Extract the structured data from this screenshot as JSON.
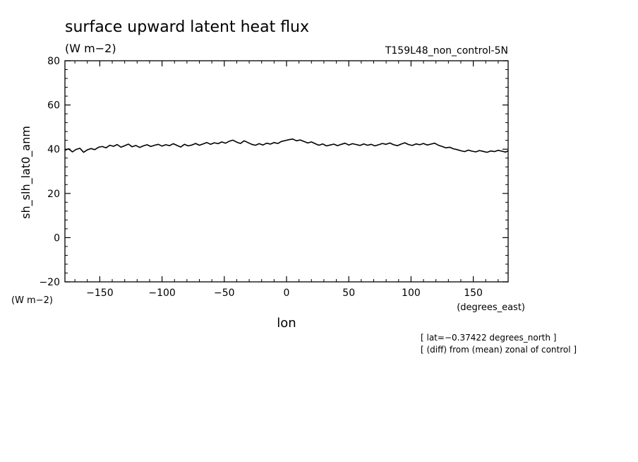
{
  "chart_data": {
    "type": "line",
    "title": "surface upward latent heat flux",
    "subtitle": "(W m−2)",
    "run_label": "T159L48_non_control-5N",
    "xlabel": "lon",
    "x_units": "(degrees_east)",
    "ylabel": "sh_slh_lat0_anm",
    "y_units": "(W m−2)",
    "xlim": [
      -178,
      178
    ],
    "ylim": [
      -20,
      80
    ],
    "x_ticks": [
      -150,
      -100,
      -50,
      0,
      50,
      100,
      150
    ],
    "x_tick_labels": [
      "−150",
      "−100",
      "−50",
      "0",
      "50",
      "100",
      "150"
    ],
    "y_ticks": [
      -20,
      0,
      20,
      40,
      60,
      80
    ],
    "y_tick_labels": [
      "−20",
      "0",
      "20",
      "40",
      "60",
      "80"
    ],
    "grid": false,
    "annotations": [
      "[ lat=−0.37422 degrees_north ]",
      "[ (diff) from (mean) zonal of control ]"
    ],
    "series": [
      {
        "color": "#000000",
        "x": [
          -178,
          -175,
          -172,
          -169,
          -166,
          -163,
          -160,
          -157,
          -154,
          -151,
          -148,
          -145,
          -142,
          -139,
          -136,
          -133,
          -130,
          -127,
          -124,
          -121,
          -118,
          -115,
          -112,
          -109,
          -106,
          -103,
          -100,
          -97,
          -94,
          -91,
          -88,
          -85,
          -82,
          -79,
          -76,
          -73,
          -70,
          -67,
          -64,
          -61,
          -58,
          -55,
          -52,
          -49,
          -46,
          -43,
          -40,
          -37,
          -34,
          -31,
          -28,
          -25,
          -22,
          -19,
          -16,
          -13,
          -10,
          -7,
          -4,
          -1,
          2,
          5,
          8,
          11,
          14,
          17,
          20,
          23,
          26,
          29,
          32,
          35,
          38,
          41,
          44,
          47,
          50,
          53,
          56,
          59,
          62,
          65,
          68,
          71,
          74,
          77,
          80,
          83,
          86,
          89,
          92,
          95,
          98,
          101,
          104,
          107,
          110,
          113,
          116,
          119,
          122,
          125,
          128,
          131,
          134,
          137,
          140,
          143,
          146,
          149,
          152,
          155,
          158,
          161,
          164,
          167,
          170,
          173,
          176,
          178
        ],
        "y": [
          39.5,
          40.2,
          38.8,
          39.9,
          40.4,
          38.6,
          39.7,
          40.3,
          39.8,
          40.9,
          41.2,
          40.6,
          41.8,
          41.3,
          42.1,
          40.9,
          41.6,
          42.3,
          41.1,
          41.7,
          40.8,
          41.5,
          42.0,
          41.2,
          41.8,
          42.2,
          41.4,
          42.0,
          41.6,
          42.5,
          41.7,
          41.0,
          42.2,
          41.5,
          41.9,
          42.6,
          41.8,
          42.4,
          43.0,
          42.2,
          42.9,
          42.5,
          43.3,
          42.7,
          43.6,
          44.1,
          43.2,
          42.6,
          43.8,
          43.0,
          42.2,
          41.8,
          42.5,
          41.9,
          42.7,
          42.3,
          43.0,
          42.6,
          43.5,
          43.9,
          44.3,
          44.6,
          43.8,
          44.2,
          43.5,
          42.8,
          43.3,
          42.5,
          41.8,
          42.4,
          41.5,
          41.9,
          42.3,
          41.6,
          42.2,
          42.7,
          41.9,
          42.5,
          42.1,
          41.7,
          42.4,
          41.8,
          42.2,
          41.5,
          42.0,
          42.6,
          42.2,
          42.8,
          42.0,
          41.6,
          42.3,
          42.9,
          42.1,
          41.7,
          42.4,
          42.0,
          42.6,
          41.9,
          42.3,
          42.7,
          41.8,
          41.2,
          40.6,
          40.9,
          40.2,
          39.8,
          39.3,
          38.9,
          39.6,
          39.1,
          38.8,
          39.4,
          39.0,
          38.6,
          39.2,
          38.9,
          39.5,
          39.1,
          38.7,
          39.3
        ]
      }
    ]
  }
}
